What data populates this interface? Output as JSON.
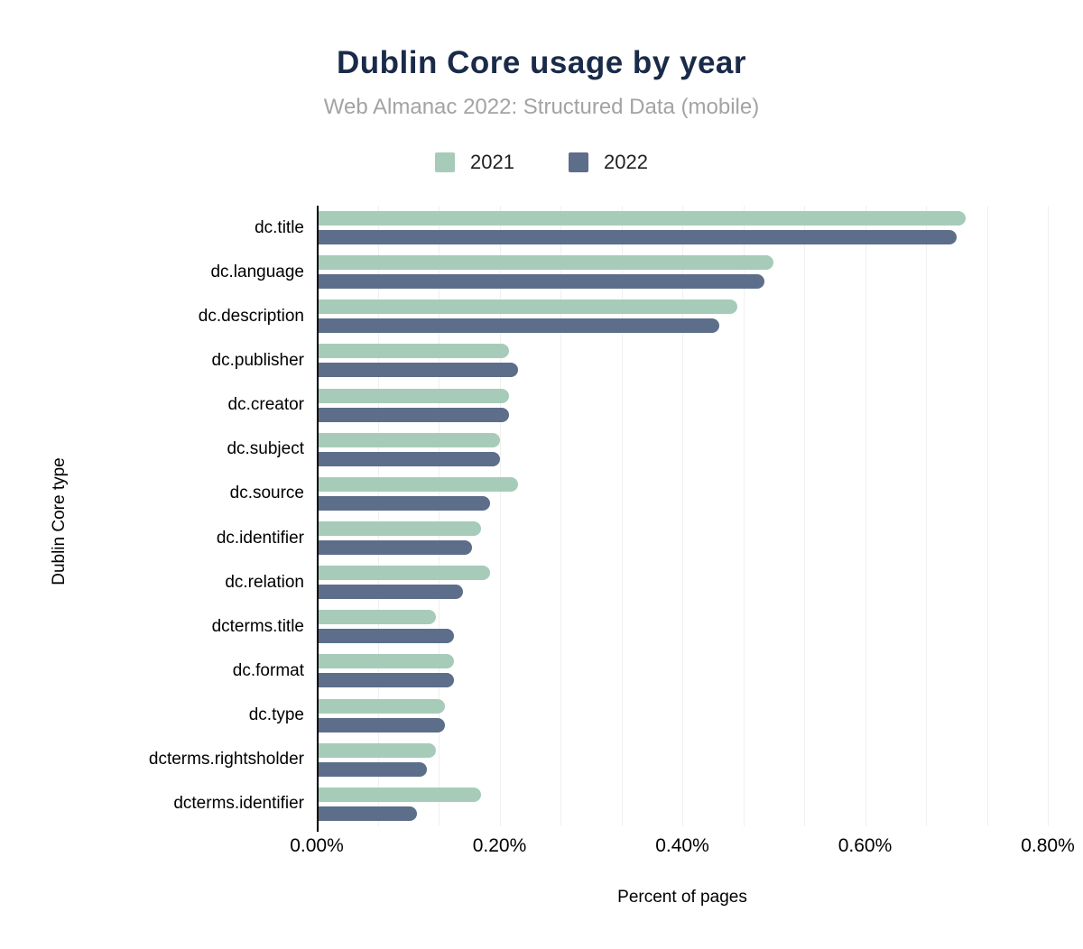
{
  "header": {
    "title": "Dublin Core usage by year",
    "subtitle": "Web Almanac 2022: Structured Data (mobile)"
  },
  "legend": {
    "items": [
      {
        "label": "2021",
        "color": "#a6ccb9"
      },
      {
        "label": "2022",
        "color": "#5d6e8a"
      }
    ]
  },
  "colors": {
    "title": "#1a2b49",
    "subtitle": "#a3a3a3",
    "text": "#000000",
    "gridline": "#f0f0f0",
    "axis": "#000000",
    "background": "#ffffff"
  },
  "chart_data": {
    "type": "bar",
    "orientation": "horizontal",
    "title": "Dublin Core usage by year",
    "subtitle": "Web Almanac 2022: Structured Data (mobile)",
    "xlabel": "Percent of pages",
    "ylabel": "Dublin Core type",
    "unit": "%",
    "categories": [
      "dc.title",
      "dc.language",
      "dc.description",
      "dc.publisher",
      "dc.creator",
      "dc.subject",
      "dc.source",
      "dc.identifier",
      "dc.relation",
      "dcterms.title",
      "dc.format",
      "dc.type",
      "dcterms.rightsholder",
      "dcterms.identifier"
    ],
    "series": [
      {
        "name": "2021",
        "color": "#a6ccb9",
        "values": [
          0.71,
          0.5,
          0.46,
          0.21,
          0.21,
          0.2,
          0.22,
          0.18,
          0.19,
          0.13,
          0.15,
          0.14,
          0.13,
          0.18
        ]
      },
      {
        "name": "2022",
        "color": "#5d6e8a",
        "values": [
          0.7,
          0.49,
          0.44,
          0.22,
          0.21,
          0.2,
          0.19,
          0.17,
          0.16,
          0.15,
          0.15,
          0.14,
          0.12,
          0.11
        ]
      }
    ],
    "x_ticks": [
      {
        "label": "0.00%",
        "value": 0.0
      },
      {
        "label": "0.20%",
        "value": 0.2
      },
      {
        "label": "0.40%",
        "value": 0.4
      },
      {
        "label": "0.60%",
        "value": 0.6
      },
      {
        "label": "0.80%",
        "value": 0.8
      }
    ],
    "xlim": [
      0,
      0.81
    ],
    "grid": {
      "axis": "x",
      "minor_step": 0.066667,
      "major_step": 0.2
    },
    "legend_position": "top"
  }
}
